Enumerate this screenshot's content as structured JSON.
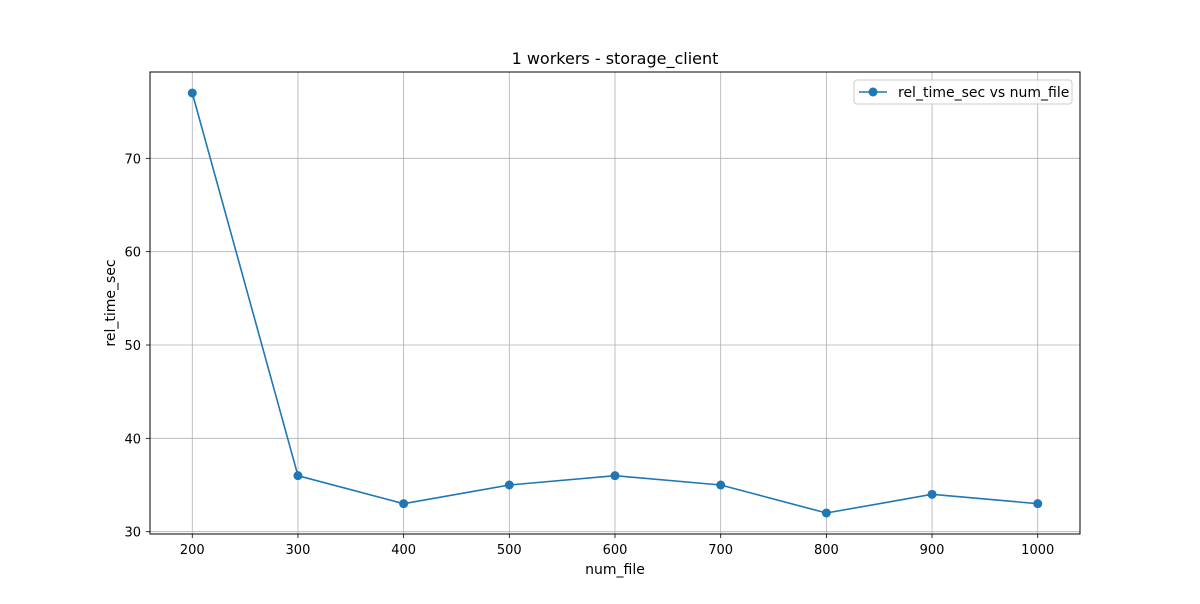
{
  "chart_data": {
    "type": "line",
    "title": "1 workers - storage_client",
    "xlabel": "num_file",
    "ylabel": "rel_time_sec",
    "x": [
      200,
      300,
      400,
      500,
      600,
      700,
      800,
      900,
      1000
    ],
    "series": [
      {
        "name": "rel_time_sec vs num_file",
        "values": [
          77,
          36,
          33,
          35,
          36,
          35,
          32,
          34,
          33
        ],
        "color": "#1f77b4",
        "marker": "circle"
      }
    ],
    "x_ticks": [
      200,
      300,
      400,
      500,
      600,
      700,
      800,
      900,
      1000
    ],
    "y_ticks": [
      30,
      40,
      50,
      60,
      70
    ],
    "xlim": [
      160,
      1040
    ],
    "ylim": [
      29.75,
      79.25
    ],
    "grid": true,
    "legend_position": "top-right"
  }
}
